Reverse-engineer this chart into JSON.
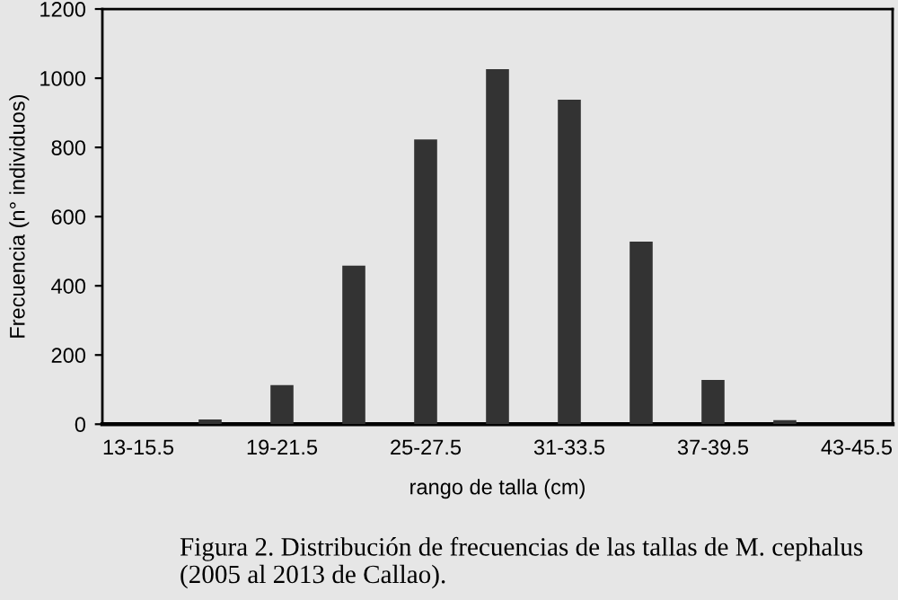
{
  "chart_data": {
    "type": "bar",
    "xlabel": "rango de talla (cm)",
    "ylabel": "Frecuencia (n° individuos)",
    "categories": [
      "13-15.5",
      null,
      "19-21.5",
      null,
      "25-27.5",
      null,
      "31-33.5",
      null,
      "37-39.5",
      null,
      "43-45.5"
    ],
    "values": [
      0,
      14,
      113,
      458,
      823,
      1026,
      938,
      528,
      128,
      12,
      0
    ],
    "color": "#333333",
    "ylim": [
      0,
      1200
    ],
    "yticks": [
      0,
      200,
      400,
      600,
      800,
      1000,
      1200
    ],
    "grid": false,
    "legend": false,
    "annotations": [
      "Figura 2. Distribución de frecuencias de las tallas de M. cephalus (2005 al 2013 de Callao)."
    ]
  }
}
